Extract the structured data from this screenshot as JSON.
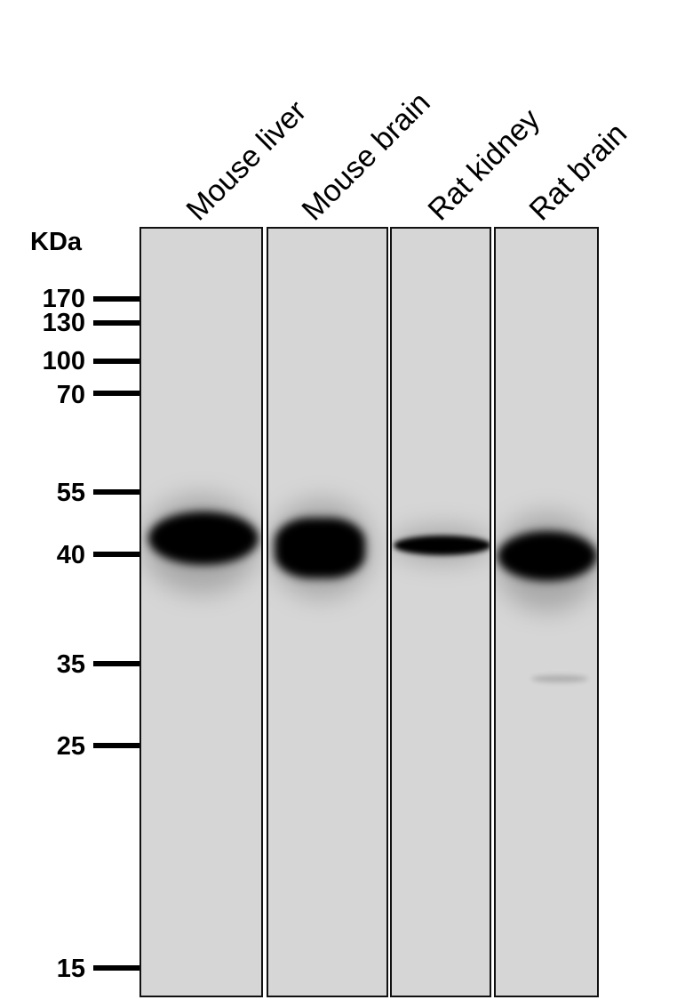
{
  "unit_label": "KDa",
  "lanes": [
    {
      "label": "Mouse liver"
    },
    {
      "label": "Mouse brain"
    },
    {
      "label": "Rat kidney"
    },
    {
      "label": "Rat brain"
    }
  ],
  "markers": [
    "170",
    "130",
    "100",
    "70",
    "55",
    "40",
    "35",
    "25",
    "15"
  ],
  "colors": {
    "membrane": "#d6d6d6",
    "band": "#000000"
  }
}
